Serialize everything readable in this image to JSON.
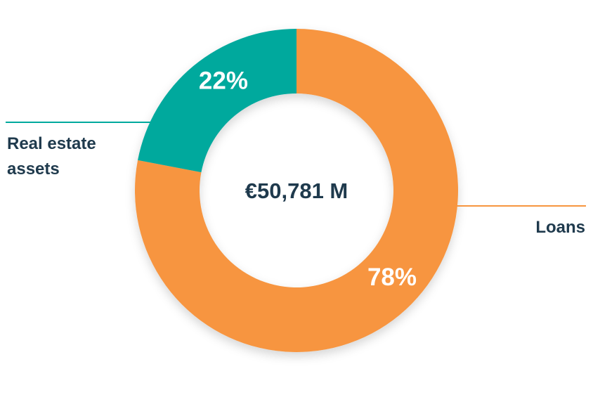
{
  "chart_data": {
    "type": "pie",
    "center_label": "€50,781 M",
    "slices": [
      {
        "label": "Loans",
        "value": 78,
        "value_label": "78%",
        "color": "#f7953f"
      },
      {
        "label": "Real estate assets",
        "label_lines": [
          "Real estate",
          "assets"
        ],
        "value": 22,
        "value_label": "22%",
        "color": "#00a99d"
      }
    ],
    "line_colors": {
      "Loans": "#f7953f",
      "Real estate assets": "#00a99d"
    }
  }
}
